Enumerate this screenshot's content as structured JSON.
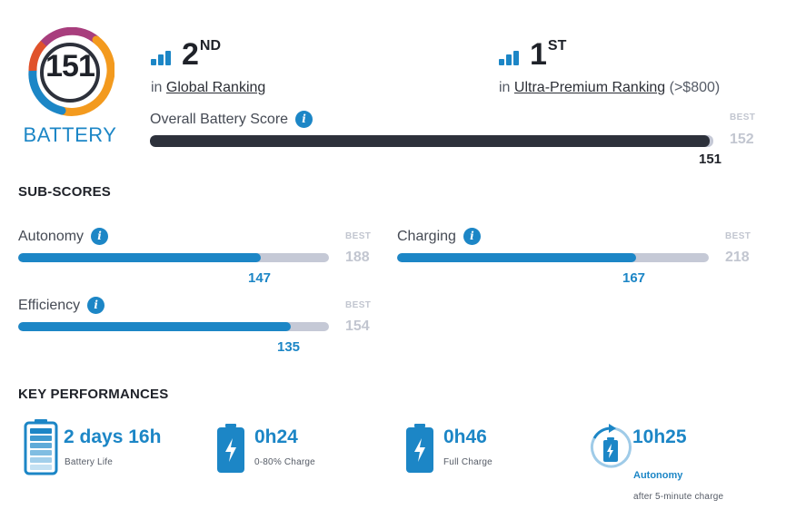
{
  "colors": {
    "accent": "#1c86c6",
    "dark": "#2d313b",
    "track": "#c5c9d6",
    "best": "#c2c6d0"
  },
  "badge": {
    "score": "151",
    "label": "BATTERY"
  },
  "global_rank": {
    "position": "2",
    "suffix": "ND",
    "prefix": "in",
    "link": "Global Ranking"
  },
  "segment_rank": {
    "position": "1",
    "suffix": "ST",
    "prefix": "in",
    "link": "Ultra-Premium Ranking",
    "note": "(>$800)"
  },
  "overall": {
    "label": "Overall Battery Score",
    "best_label": "BEST",
    "best": "152",
    "score": "151",
    "fraction": 0.993
  },
  "subscores": {
    "title": "SUB-SCORES",
    "autonomy": {
      "label": "Autonomy",
      "best_label": "BEST",
      "best": "188",
      "score": "147",
      "fraction": 0.782
    },
    "charging": {
      "label": "Charging",
      "best_label": "BEST",
      "best": "218",
      "score": "167",
      "fraction": 0.766
    },
    "efficiency": {
      "label": "Efficiency",
      "best_label": "BEST",
      "best": "154",
      "score": "135",
      "fraction": 0.877
    }
  },
  "key_performances": {
    "title": "KEY PERFORMANCES",
    "battery_life": {
      "icon": "battery-full-icon",
      "value": "2 days 16h",
      "label": "Battery Life"
    },
    "charge_80": {
      "icon": "battery-charging-icon",
      "value": "0h24",
      "label": "0-80% Charge"
    },
    "full_charge": {
      "icon": "battery-charging-icon",
      "value": "0h46",
      "label": "Full Charge"
    },
    "autonomy_quick": {
      "icon": "quick-charge-cycle-icon",
      "value": "10h25",
      "label": "Autonomy",
      "note": "after 5-minute charge"
    }
  }
}
